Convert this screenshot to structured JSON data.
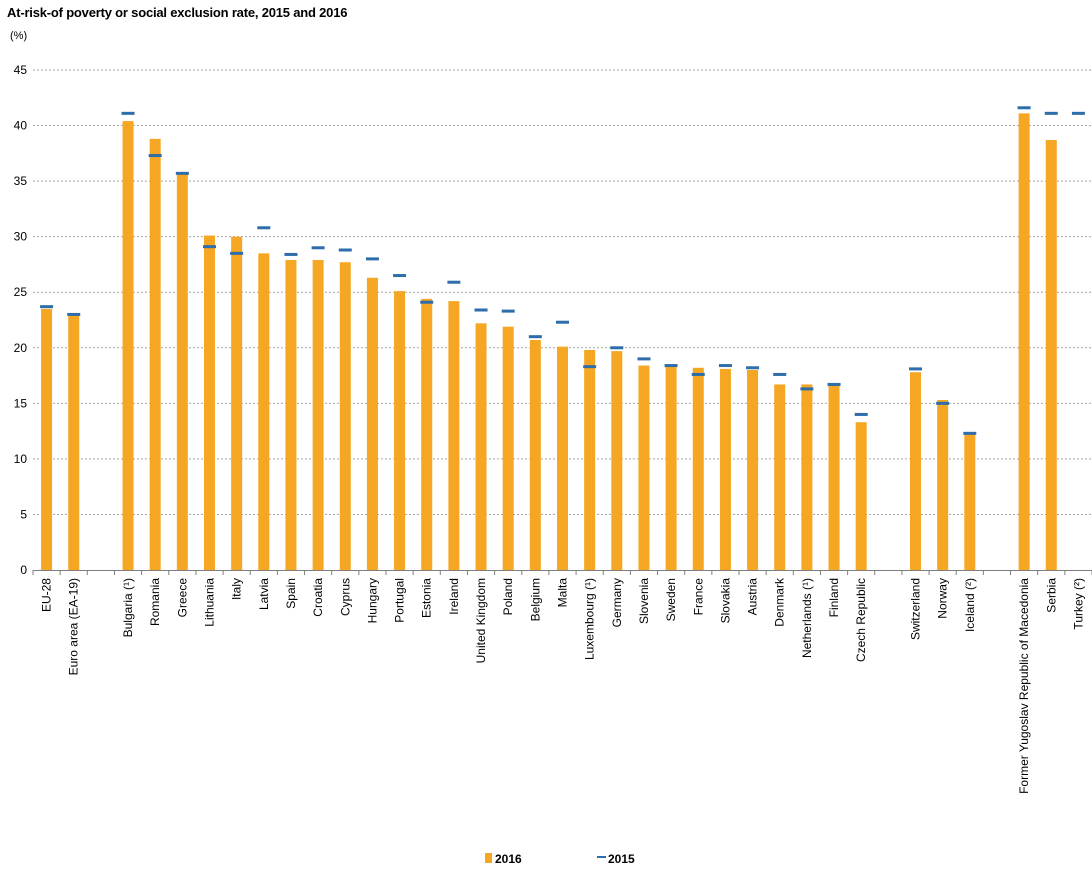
{
  "chart_data": {
    "type": "bar",
    "title": "At-risk-of poverty or social exclusion rate, 2015 and 2016",
    "unit": "(%)",
    "ylim": [
      0,
      45
    ],
    "yticks": [
      0,
      5,
      10,
      15,
      20,
      25,
      30,
      35,
      40,
      45
    ],
    "grid": true,
    "legend_position": "bottom",
    "categories": [
      "EU-28",
      "Euro area (EA-19)",
      "",
      "Bulgaria (¹)",
      "Romania",
      "Greece",
      "Lithuania",
      "Italy",
      "Latvia",
      "Spain",
      "Croatia",
      "Cyprus",
      "Hungary",
      "Portugal",
      "Estonia",
      "Ireland",
      "United Kingdom",
      "Poland",
      "Belgium",
      "Malta",
      "Luxembourg (¹)",
      "Germany",
      "Slovenia",
      "Sweden",
      "France",
      "Slovakia",
      "Austria",
      "Denmark",
      "Netherlands (¹)",
      "Finland",
      "Czech Republic",
      "",
      "Switzerland",
      "Norway",
      "Iceland (²)",
      "",
      "Former Yugoslav Republic of Macedonia",
      "Serbia",
      "Turkey (²)"
    ],
    "series": [
      {
        "name": "2016",
        "type": "bar",
        "color": "#f5a623",
        "values": [
          23.5,
          23.0,
          null,
          40.4,
          38.8,
          35.6,
          30.1,
          30.0,
          28.5,
          27.9,
          27.9,
          27.7,
          26.3,
          25.1,
          24.4,
          24.2,
          22.2,
          21.9,
          20.7,
          20.1,
          19.8,
          19.7,
          18.4,
          18.3,
          18.2,
          18.1,
          18.0,
          16.7,
          16.7,
          16.6,
          13.3,
          null,
          17.8,
          15.3,
          12.2,
          null,
          41.1,
          38.7,
          null
        ]
      },
      {
        "name": "2015",
        "type": "marker",
        "color": "#2e6dab",
        "values": [
          23.7,
          23.0,
          null,
          41.1,
          37.3,
          35.7,
          29.1,
          28.5,
          30.8,
          28.4,
          29.0,
          28.8,
          28.0,
          26.5,
          24.1,
          25.9,
          23.4,
          23.3,
          21.0,
          22.3,
          18.3,
          20.0,
          19.0,
          18.4,
          17.6,
          18.4,
          18.2,
          17.6,
          16.3,
          16.7,
          14.0,
          null,
          18.1,
          15.0,
          12.3,
          null,
          41.6,
          41.1,
          41.1
        ]
      }
    ]
  }
}
